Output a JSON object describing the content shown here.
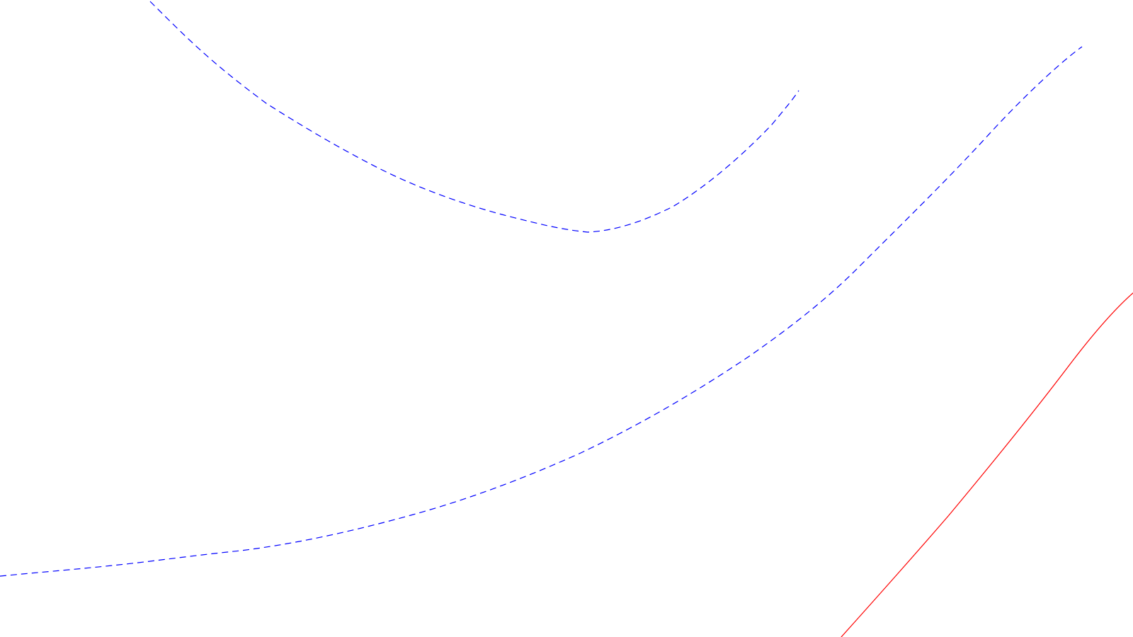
{
  "map": {
    "background_color": "#ffffff",
    "features": [
      {
        "id": "route-upper-curve",
        "style": "dashed",
        "color": "#0000ff"
      },
      {
        "id": "route-lower-curve",
        "style": "dashed",
        "color": "#0000ff"
      },
      {
        "id": "route-red-line",
        "style": "solid",
        "color": "#ff0000"
      }
    ]
  }
}
